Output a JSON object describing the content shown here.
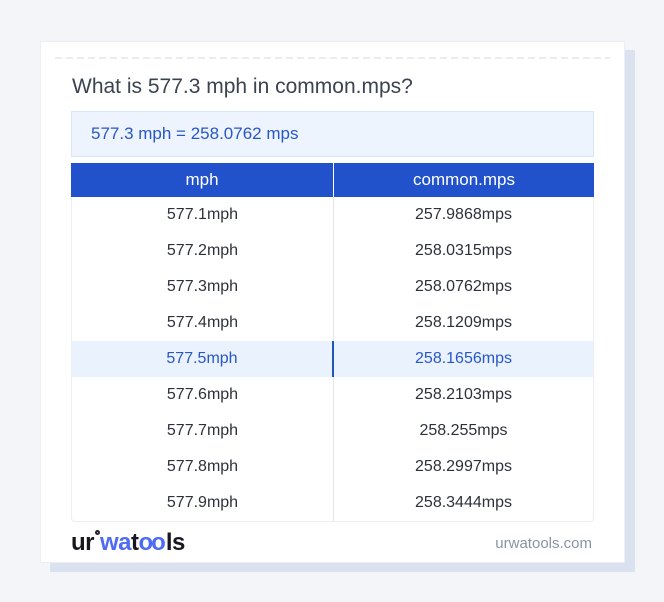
{
  "card": {
    "title": "What is 577.3 mph in common.mps?",
    "result": "577.3 mph = 258.0762 mps"
  },
  "table": {
    "headers": [
      "mph",
      "common.mps"
    ],
    "highlight_index": 4,
    "rows": [
      [
        "577.1mph",
        "257.9868mps"
      ],
      [
        "577.2mph",
        "258.0315mps"
      ],
      [
        "577.3mph",
        "258.0762mps"
      ],
      [
        "577.4mph",
        "258.1209mps"
      ],
      [
        "577.5mph",
        "258.1656mps"
      ],
      [
        "577.6mph",
        "258.2103mps"
      ],
      [
        "577.7mph",
        "258.255mps"
      ],
      [
        "577.8mph",
        "258.2997mps"
      ],
      [
        "577.9mph",
        "258.3444mps"
      ]
    ]
  },
  "footer": {
    "logo_ur": "ur",
    "logo_wa": "wa",
    "logo_t": "t",
    "logo_oo": "oo",
    "logo_ls": "ls",
    "site": "urwatools.com"
  },
  "colors": {
    "page_background": "#f3f5f9",
    "card_background": "#ffffff",
    "card_shadow": "#dae1ef",
    "header_blue": "#2152cb",
    "accent_blue": "#2a57c8",
    "highlight_row_bg": "#e9f2fd",
    "result_box_bg": "#edf4fd",
    "logo_blue": "#4d6bf4",
    "muted_text": "#8a92a6",
    "title_text": "#3b4350"
  }
}
